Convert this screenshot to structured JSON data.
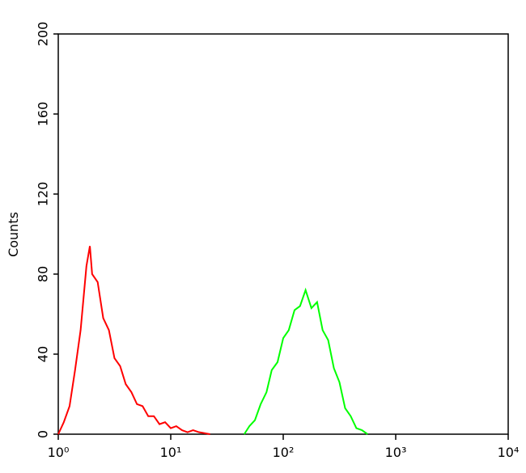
{
  "chart_data": {
    "type": "histogram-line",
    "y_label": "Counts",
    "xlog": true,
    "xlim": [
      1,
      10000
    ],
    "xticks": [
      {
        "value": 1,
        "label": "10⁰"
      },
      {
        "value": 10,
        "label": "10¹"
      },
      {
        "value": 100,
        "label": "10²"
      },
      {
        "value": 1000,
        "label": "10³"
      },
      {
        "value": 10000,
        "label": "10⁴"
      }
    ],
    "ylim": [
      0,
      200
    ],
    "yticks": [
      0,
      40,
      80,
      120,
      160,
      200
    ],
    "series": [
      {
        "color": "#ff0000",
        "x": [
          1,
          1.12,
          1.26,
          1.41,
          1.58,
          1.78,
          1.91,
          2.0,
          2.24,
          2.51,
          2.82,
          3.16,
          3.55,
          3.98,
          4.47,
          5.01,
          5.62,
          6.31,
          7.08,
          7.94,
          8.91,
          10,
          11.2,
          12.6,
          14.1,
          15.8,
          17.8,
          22.4
        ],
        "values": [
          0,
          6,
          14,
          32,
          52,
          84,
          94,
          80,
          76,
          58,
          52,
          38,
          34,
          25,
          21,
          15,
          14,
          9,
          9,
          5,
          6,
          3,
          4,
          2,
          1,
          2,
          1,
          0
        ]
      },
      {
        "color": "#00ff00",
        "x": [
          45,
          50,
          56,
          63,
          71,
          79,
          89,
          100,
          112,
          126,
          141,
          158,
          178,
          200,
          224,
          251,
          282,
          316,
          355,
          398,
          447,
          501,
          562
        ],
        "values": [
          0,
          4,
          7,
          15,
          21,
          32,
          36,
          48,
          52,
          62,
          64,
          72,
          63,
          66,
          52,
          47,
          33,
          26,
          13,
          9,
          3,
          2,
          0
        ]
      }
    ]
  }
}
